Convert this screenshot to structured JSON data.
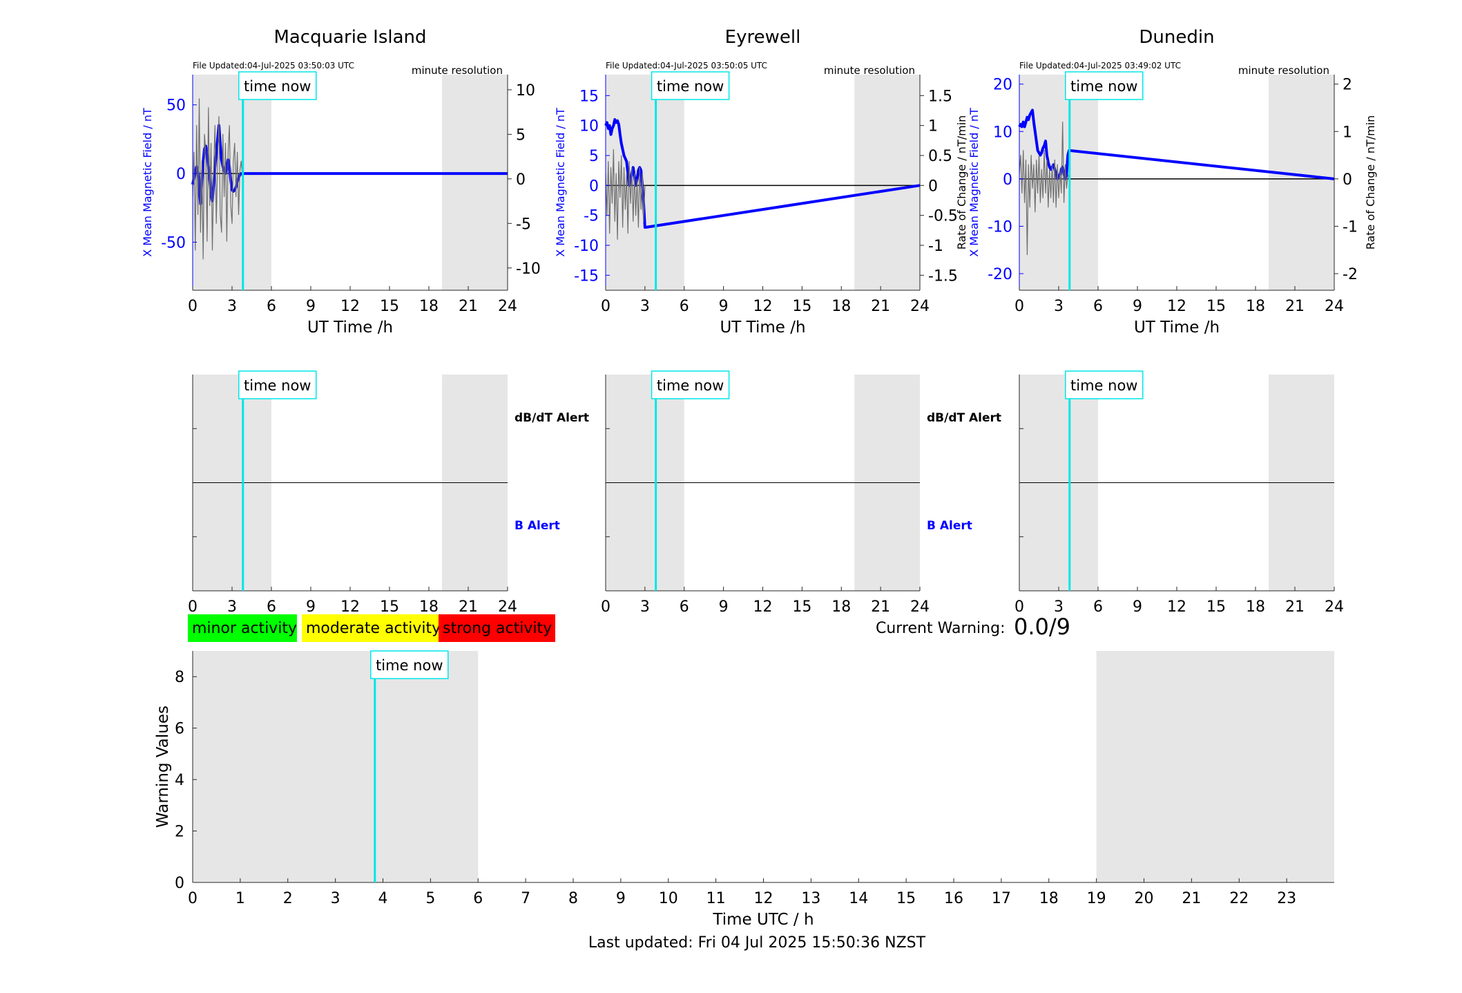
{
  "colors": {
    "field": "#0000ff",
    "rate": "#6e6e6e",
    "time_now": "#00e6e6",
    "night_shade": "#e6e6e6",
    "minor": "#00ff00",
    "moderate": "#ffff00",
    "strong": "#ff0000"
  },
  "time_now_label": "time now",
  "time_now_hour": 3.83,
  "night_bands_h": [
    [
      0,
      6
    ],
    [
      19,
      24
    ]
  ],
  "chart_data": [
    {
      "type": "line",
      "title": "Macquarie Island",
      "file_updated": "File Updated:04-Jul-2025 03:50:03 UTC",
      "resolution": "minute resolution",
      "xlabel": "UT Time /h",
      "ylabel_left": "X Mean Magnetic Field / nT",
      "ylabel_right": "",
      "x_ticks": [
        "0",
        "3",
        "6",
        "9",
        "12",
        "15",
        "18",
        "21",
        "24"
      ],
      "xlim": [
        0,
        24
      ],
      "ylim_left": [
        -85,
        72
      ],
      "yticks_left": [
        -50,
        0,
        50
      ],
      "ylim_right": [
        -12.5,
        11.7
      ],
      "yticks_right": [
        -10,
        -5,
        0,
        5,
        10
      ],
      "series": [
        {
          "axis": "left",
          "x": [
            0,
            0.1,
            0.2,
            0.3,
            0.4,
            0.5,
            0.6,
            0.7,
            0.8,
            0.9,
            1.0,
            1.1,
            1.2,
            1.3,
            1.4,
            1.5,
            1.6,
            1.7,
            1.8,
            1.9,
            2.0,
            2.1,
            2.2,
            2.3,
            2.4,
            2.5,
            2.6,
            2.7,
            2.8,
            2.9,
            3.0,
            3.1,
            3.2,
            3.3,
            3.4,
            3.5,
            3.6,
            3.7,
            3.8,
            24
          ],
          "values": [
            -8,
            -3,
            2,
            5,
            0,
            -10,
            -22,
            -5,
            8,
            18,
            20,
            14,
            5,
            -5,
            -15,
            -20,
            -8,
            5,
            15,
            25,
            35,
            22,
            10,
            5,
            2,
            0,
            5,
            10,
            5,
            -5,
            -12,
            -13,
            -12,
            -10,
            -6,
            -3,
            -1,
            0,
            0,
            0
          ]
        },
        {
          "axis": "right",
          "x": [
            0,
            0.1,
            0.2,
            0.3,
            0.4,
            0.5,
            0.6,
            0.7,
            0.8,
            0.9,
            1.0,
            1.1,
            1.2,
            1.3,
            1.4,
            1.5,
            1.6,
            1.7,
            1.8,
            1.9,
            2.0,
            2.1,
            2.2,
            2.3,
            2.4,
            2.5,
            2.6,
            2.7,
            2.8,
            2.9,
            3.0,
            3.1,
            3.2,
            3.3,
            3.4,
            3.5,
            3.6,
            3.7,
            3.8
          ],
          "values": [
            -2,
            3,
            -8,
            6,
            -4,
            9,
            -6,
            2,
            -9,
            5,
            3,
            -7,
            8,
            -3,
            4,
            -8,
            1,
            6,
            -5,
            2,
            7,
            -4,
            -6,
            5,
            -2,
            4,
            -7,
            3,
            6,
            -3,
            -5,
            2,
            4,
            -2,
            3,
            -4,
            1,
            2,
            0
          ]
        }
      ]
    },
    {
      "type": "line",
      "title": "Eyrewell",
      "file_updated": "File Updated:04-Jul-2025 03:50:05 UTC",
      "resolution": "minute resolution",
      "xlabel": "UT Time /h",
      "ylabel_left": "X Mean Magnetic Field / nT",
      "ylabel_right": "Rate of Change / nT/min",
      "x_ticks": [
        "0",
        "3",
        "6",
        "9",
        "12",
        "15",
        "18",
        "21",
        "24"
      ],
      "xlim": [
        0,
        24
      ],
      "ylim_left": [
        -17.5,
        18.5
      ],
      "yticks_left": [
        -15,
        -10,
        -5,
        0,
        5,
        10,
        15
      ],
      "ylim_right": [
        -1.75,
        1.85
      ],
      "yticks_right": [
        -1.5,
        -1,
        -0.5,
        0,
        0.5,
        1,
        1.5
      ],
      "series": [
        {
          "axis": "left",
          "x": [
            0,
            0.1,
            0.2,
            0.3,
            0.4,
            0.5,
            0.6,
            0.7,
            0.8,
            0.9,
            1.0,
            1.1,
            1.2,
            1.3,
            1.4,
            1.5,
            1.6,
            1.7,
            1.8,
            1.9,
            2.0,
            2.1,
            2.2,
            2.3,
            2.4,
            2.5,
            2.6,
            2.7,
            2.8,
            2.9,
            3.0,
            3.05,
            24
          ],
          "values": [
            10,
            10.5,
            9.5,
            10,
            8.5,
            9.5,
            10,
            11,
            10.5,
            10.8,
            10.2,
            8.5,
            7,
            6,
            5,
            4.5,
            4,
            2,
            0,
            1,
            2,
            3,
            1.5,
            0,
            1,
            2.5,
            3,
            2.5,
            0,
            -3,
            -7,
            -7,
            0
          ]
        },
        {
          "axis": "right",
          "x": [
            0,
            0.1,
            0.2,
            0.3,
            0.4,
            0.5,
            0.6,
            0.7,
            0.8,
            0.9,
            1.0,
            1.1,
            1.2,
            1.3,
            1.4,
            1.5,
            1.6,
            1.7,
            1.8,
            1.9,
            2.0,
            2.1,
            2.2,
            2.3,
            2.4,
            2.5,
            2.6,
            2.7,
            2.8,
            2.9,
            3.0
          ],
          "values": [
            0.2,
            -0.5,
            0.4,
            -0.8,
            0.3,
            -0.3,
            0.6,
            -0.6,
            0.2,
            -0.9,
            0.4,
            -0.2,
            0.5,
            -0.7,
            0.3,
            -0.4,
            0.2,
            -0.8,
            0.4,
            -0.3,
            0.3,
            -0.6,
            0.2,
            -0.5,
            0.1,
            -0.7,
            0.3,
            -0.4,
            0.2,
            -0.6,
            0
          ]
        }
      ]
    },
    {
      "type": "line",
      "title": "Dunedin",
      "file_updated": "File Updated:04-Jul-2025 03:49:02 UTC",
      "resolution": "minute resolution",
      "xlabel": "UT Time /h",
      "ylabel_left": "X Mean Magnetic Field / nT",
      "ylabel_right": "Rate of Change / nT/min",
      "x_ticks": [
        "0",
        "3",
        "6",
        "9",
        "12",
        "15",
        "18",
        "21",
        "24"
      ],
      "xlim": [
        0,
        24
      ],
      "ylim_left": [
        -23.5,
        22
      ],
      "yticks_left": [
        -20,
        -10,
        0,
        10,
        20
      ],
      "ylim_right": [
        -2.35,
        2.2
      ],
      "yticks_right": [
        -2,
        -1,
        0,
        1,
        2
      ],
      "series": [
        {
          "axis": "left",
          "x": [
            0,
            0.1,
            0.2,
            0.3,
            0.4,
            0.5,
            0.6,
            0.7,
            0.8,
            0.9,
            1.0,
            1.1,
            1.2,
            1.3,
            1.4,
            1.5,
            1.6,
            1.7,
            1.8,
            1.9,
            2.0,
            2.1,
            2.2,
            2.3,
            2.4,
            2.5,
            2.6,
            2.7,
            2.8,
            2.9,
            3.0,
            3.1,
            3.2,
            3.3,
            3.4,
            3.5,
            3.6,
            3.7,
            3.8,
            24
          ],
          "values": [
            11,
            11.5,
            11,
            12,
            11,
            12,
            13,
            12.5,
            13.5,
            14,
            14.5,
            12,
            10,
            8,
            6,
            5.5,
            5,
            5.5,
            6.5,
            7,
            8,
            5,
            3.5,
            2.5,
            2,
            2.5,
            3,
            2,
            1,
            0,
            0.5,
            1,
            2,
            2.5,
            1,
            0,
            1,
            5,
            6,
            0
          ]
        },
        {
          "axis": "right",
          "x": [
            0,
            0.1,
            0.2,
            0.3,
            0.4,
            0.5,
            0.6,
            0.7,
            0.8,
            0.9,
            1.0,
            1.1,
            1.2,
            1.3,
            1.4,
            1.5,
            1.6,
            1.7,
            1.8,
            1.9,
            2.0,
            2.1,
            2.2,
            2.3,
            2.4,
            2.5,
            2.6,
            2.7,
            2.8,
            2.9,
            3.0,
            3.1,
            3.2,
            3.3,
            3.4,
            3.5,
            3.6,
            3.7,
            3.8
          ],
          "values": [
            0.1,
            0.5,
            -0.3,
            0.6,
            -0.5,
            0.4,
            -1.6,
            0.3,
            -0.6,
            0.5,
            -0.2,
            0.3,
            -0.7,
            0.4,
            -0.3,
            0.5,
            -0.5,
            0.2,
            -0.4,
            0.6,
            -0.3,
            0.4,
            -0.6,
            0.2,
            -0.4,
            0.3,
            -0.5,
            0.4,
            -0.6,
            0.3,
            -0.4,
            0.2,
            -0.3,
            1.2,
            -0.5,
            0.3,
            -0.2,
            0.1,
            0
          ]
        }
      ]
    },
    {
      "type": "line",
      "x_ticks": [
        "0",
        "3",
        "6",
        "9",
        "12",
        "15",
        "18",
        "21",
        "24"
      ],
      "xlim": [
        0,
        24
      ],
      "upper_label": "dB/dT Alert",
      "lower_label": "B Alert",
      "series": []
    },
    {
      "type": "line",
      "x_ticks": [
        "0",
        "3",
        "6",
        "9",
        "12",
        "15",
        "18",
        "21",
        "24"
      ],
      "xlim": [
        0,
        24
      ],
      "upper_label": "dB/dT Alert",
      "lower_label": "B Alert",
      "series": []
    },
    {
      "type": "line",
      "x_ticks": [
        "0",
        "3",
        "6",
        "9",
        "12",
        "15",
        "18",
        "21",
        "24"
      ],
      "xlim": [
        0,
        24
      ],
      "series": []
    },
    {
      "type": "line",
      "xlabel": "Time UTC / h",
      "ylabel": "Warning Values",
      "x_ticks": [
        "0",
        "1",
        "2",
        "3",
        "4",
        "5",
        "6",
        "7",
        "8",
        "9",
        "10",
        "11",
        "12",
        "13",
        "14",
        "15",
        "16",
        "17",
        "18",
        "19",
        "20",
        "21",
        "22",
        "23"
      ],
      "xlim": [
        0,
        24
      ],
      "ylim": [
        0,
        9
      ],
      "yticks": [
        0,
        2,
        4,
        6,
        8
      ],
      "series": []
    }
  ],
  "legend": [
    {
      "label": "minor activity",
      "color": "#00ff00"
    },
    {
      "label": "moderate activity",
      "color": "#ffff00"
    },
    {
      "label": "strong activity",
      "color": "#ff0000"
    }
  ],
  "current_warning": {
    "label": "Current Warning:",
    "value": "0.0/9"
  },
  "footer": "Last updated: Fri 04 Jul 2025 15:50:36 NZST"
}
